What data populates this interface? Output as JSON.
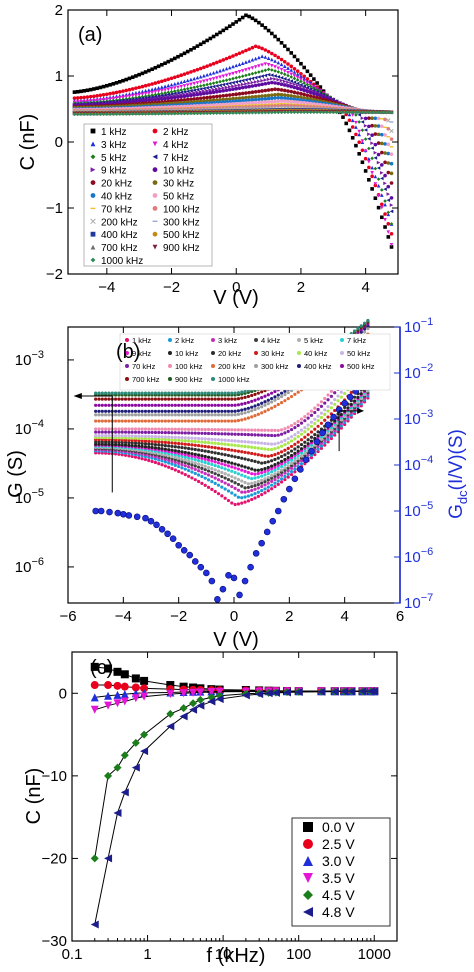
{
  "figure": {
    "panel_a": {
      "label": "(a)",
      "xlabel": "V (V)",
      "ylabel": "C (nF)"
    },
    "panel_b": {
      "label": "(b)",
      "xlabel": "V (V)",
      "ylabel": "G (S)",
      "y2label": "G",
      "y2label_sub": "dc",
      "y2label_tail": "(I/V)(S)"
    },
    "panel_c": {
      "label": "(c)",
      "xlabel": "f (kHz)",
      "ylabel": "C (nF)"
    }
  },
  "chart_data": [
    {
      "type": "scatter",
      "title": "",
      "panel": "(a)",
      "xlabel": "V (V)",
      "ylabel": "C (nF)",
      "xlim": [
        -5.2,
        5.0
      ],
      "ylim": [
        -2,
        2
      ],
      "xticks": [
        -4,
        -2,
        0,
        2,
        4
      ],
      "yticks": [
        -2,
        -1,
        0,
        1,
        2
      ],
      "grid": false,
      "legend": "lower-left",
      "series": [
        {
          "name": "1 kHz",
          "color": "#000000",
          "marker": "square",
          "peak_v": 0.3,
          "peak_c": 1.92,
          "start_c": 0.75,
          "cross_v": 3.2,
          "end_c": -1.9
        },
        {
          "name": "2 kHz",
          "color": "#e8001c",
          "marker": "circle",
          "peak_v": 0.6,
          "peak_c": 1.45,
          "start_c": 0.66,
          "cross_v": 3.35,
          "end_c": -1.7
        },
        {
          "name": "3 kHz",
          "color": "#1f2fd9",
          "marker": "triangle",
          "peak_v": 0.8,
          "peak_c": 1.3,
          "start_c": 0.62,
          "cross_v": 3.45,
          "end_c": -1.55
        },
        {
          "name": "4 kHz",
          "color": "#e316d6",
          "marker": "tri-down",
          "peak_v": 0.9,
          "peak_c": 1.18,
          "start_c": 0.6,
          "cross_v": 3.55,
          "end_c": -1.95
        },
        {
          "name": "5 kHz",
          "color": "#1b7d1b",
          "marker": "diamond",
          "peak_v": 1.0,
          "peak_c": 1.1,
          "start_c": 0.58,
          "cross_v": 3.65,
          "end_c": -1.6
        },
        {
          "name": "7 kHz",
          "color": "#1c1c8c",
          "marker": "tri-left",
          "peak_v": 1.0,
          "peak_c": 1.02,
          "start_c": 0.57,
          "cross_v": 3.75,
          "end_c": -1.4
        },
        {
          "name": "9 kHz",
          "color": "#7d1fa3",
          "marker": "tri-right",
          "peak_v": 1.1,
          "peak_c": 0.96,
          "start_c": 0.56,
          "cross_v": 3.8,
          "end_c": -1.3
        },
        {
          "name": "10 kHz",
          "color": "#5e0ca0",
          "marker": "hexagon",
          "peak_v": 1.1,
          "peak_c": 0.9,
          "start_c": 0.55,
          "cross_v": 3.9,
          "end_c": -1.2
        },
        {
          "name": "20 kHz",
          "color": "#8b0a1e",
          "marker": "circle",
          "peak_v": 1.2,
          "peak_c": 0.8,
          "start_c": 0.53,
          "cross_v": 4.0,
          "end_c": -0.95
        },
        {
          "name": "30 kHz",
          "color": "#7b6a12",
          "marker": "star",
          "peak_v": 1.3,
          "peak_c": 0.72,
          "start_c": 0.52,
          "cross_v": 4.1,
          "end_c": -0.8
        },
        {
          "name": "40 kHz",
          "color": "#1677c9",
          "marker": "circle",
          "peak_v": 1.3,
          "peak_c": 0.67,
          "start_c": 0.5,
          "cross_v": 4.2,
          "end_c": -0.65
        },
        {
          "name": "50 kHz",
          "color": "#f0a0c8",
          "marker": "circle",
          "peak_v": 1.4,
          "peak_c": 0.62,
          "start_c": 0.49,
          "cross_v": 4.3,
          "end_c": -0.5
        },
        {
          "name": "70 kHz",
          "color": "#ebc32c",
          "marker": "dash",
          "peak_v": 1.4,
          "peak_c": 0.58,
          "start_c": 0.48,
          "cross_v": 4.4,
          "end_c": -0.4
        },
        {
          "name": "100 kHz",
          "color": "#e07b7b",
          "marker": "circle",
          "peak_v": 1.5,
          "peak_c": 0.55,
          "start_c": 0.47,
          "cross_v": 4.5,
          "end_c": -0.3
        },
        {
          "name": "200 kHz",
          "color": "#aaaaaa",
          "marker": "cross",
          "peak_v": 1.5,
          "peak_c": 0.52,
          "start_c": 0.46,
          "cross_v": 4.6,
          "end_c": -0.2
        },
        {
          "name": "300 kHz",
          "color": "#9aa8d8",
          "marker": "dash",
          "peak_v": 1.5,
          "peak_c": 0.5,
          "start_c": 0.45,
          "cross_v": 4.7,
          "end_c": -0.1
        },
        {
          "name": "400 kHz",
          "color": "#1f3a9a",
          "marker": "square",
          "peak_v": 1.6,
          "peak_c": 0.49,
          "start_c": 0.44,
          "cross_v": 4.8,
          "end_c": 0.0
        },
        {
          "name": "500 kHz",
          "color": "#c28a1a",
          "marker": "circle",
          "peak_v": 1.6,
          "peak_c": 0.48,
          "start_c": 0.44,
          "cross_v": 4.9,
          "end_c": 0.1
        },
        {
          "name": "700 kHz",
          "color": "#6f6f6f",
          "marker": "triangle",
          "peak_v": 1.6,
          "peak_c": 0.47,
          "start_c": 0.43,
          "cross_v": 5.0,
          "end_c": 0.2
        },
        {
          "name": "900 kHz",
          "color": "#7d1f3a",
          "marker": "tri-down",
          "peak_v": 1.6,
          "peak_c": 0.46,
          "start_c": 0.43,
          "cross_v": 5.0,
          "end_c": 0.3
        },
        {
          "name": "1000 kHz",
          "color": "#2e8b57",
          "marker": "diamond",
          "peak_v": 1.6,
          "peak_c": 0.45,
          "start_c": 0.42,
          "cross_v": 5.0,
          "end_c": 0.4
        }
      ]
    },
    {
      "type": "scatter",
      "title": "",
      "panel": "(b)",
      "xlabel": "V (V)",
      "ylabel": "G (S)",
      "y2label": "Gdc(I/V)(S)",
      "xlim": [
        -6,
        6
      ],
      "ylim_log": [
        3e-07,
        0.003
      ],
      "y2lim_log": [
        1e-07,
        0.1
      ],
      "xticks": [
        -6,
        -4,
        -2,
        0,
        2,
        4,
        6
      ],
      "yticks": [
        "10^-6",
        "10^-5",
        "10^-4",
        "10^-3"
      ],
      "y2ticks": [
        "10^-7",
        "10^-6",
        "10^-5",
        "10^-4",
        "10^-3",
        "10^-2",
        "10^-1"
      ],
      "grid": false,
      "legend": "top-left",
      "legend_entries": [
        "1 kHz",
        "2 kHz",
        "3 kHz",
        "4 kHz",
        "5 kHz",
        "7 kHz",
        "9 kHz",
        "10 kHz",
        "20 kHz",
        "30 kHz",
        "40 kHz",
        "50 kHz",
        "70 kHz",
        "100 kHz",
        "200 kHz",
        "300 kHz",
        "400 kHz",
        "500 kHz",
        "700 kHz",
        "900 kHz",
        "1000 kHz"
      ],
      "legend_colors": [
        "#e3126e",
        "#1a9bd7",
        "#c42fb8",
        "#404040",
        "#b0b0b0",
        "#2ad0d0",
        "#e31ad2",
        "#222222",
        "#2f2f2f",
        "#d11a1a",
        "#a8e84a",
        "#c9b4e8",
        "#7d1fa3",
        "#f08bb0",
        "#e06b3a",
        "#9ea0a0",
        "#1f1f7a",
        "#8b0aa0",
        "#8b1010",
        "#1f5a1f",
        "#2b8a7a"
      ],
      "series": [
        {
          "name": "1 kHz",
          "color": "#e3126e",
          "g_left": 4.5e-05,
          "g_min": 8e-06,
          "v_min": 0.0,
          "g_right": 0.0003
        },
        {
          "name": "2 kHz",
          "color": "#1a9bd7",
          "g_left": 4.8e-05,
          "g_min": 1e-05,
          "v_min": 0.2,
          "g_right": 0.00032
        },
        {
          "name": "3 kHz",
          "color": "#c42fb8",
          "g_left": 5e-05,
          "g_min": 1.2e-05,
          "v_min": 0.3,
          "g_right": 0.00034
        },
        {
          "name": "4 kHz",
          "color": "#404040",
          "g_left": 5.2e-05,
          "g_min": 1.4e-05,
          "v_min": 0.4,
          "g_right": 0.00036
        },
        {
          "name": "5 kHz",
          "color": "#b0b0b0",
          "g_left": 5.4e-05,
          "g_min": 1.6e-05,
          "v_min": 0.5,
          "g_right": 0.00038
        },
        {
          "name": "7 kHz",
          "color": "#2ad0d0",
          "g_left": 5.6e-05,
          "g_min": 1.9e-05,
          "v_min": 0.6,
          "g_right": 0.0004
        },
        {
          "name": "9 kHz",
          "color": "#e31ad2",
          "g_left": 5.8e-05,
          "g_min": 2.2e-05,
          "v_min": 0.7,
          "g_right": 0.00042
        },
        {
          "name": "10 kHz",
          "color": "#222222",
          "g_left": 6e-05,
          "g_min": 2.5e-05,
          "v_min": 0.8,
          "g_right": 0.00044
        },
        {
          "name": "20 kHz",
          "color": "#2f2f2f",
          "g_left": 6.5e-05,
          "g_min": 3.2e-05,
          "v_min": 1.0,
          "g_right": 0.0005
        },
        {
          "name": "30 kHz",
          "color": "#d11a1a",
          "g_left": 7e-05,
          "g_min": 4e-05,
          "v_min": 1.2,
          "g_right": 0.0007
        },
        {
          "name": "40 kHz",
          "color": "#a8e84a",
          "g_left": 7.5e-05,
          "g_min": 5e-05,
          "v_min": 1.3,
          "g_right": 0.0009
        },
        {
          "name": "50 kHz",
          "color": "#c9b4e8",
          "g_left": 8e-05,
          "g_min": 6e-05,
          "v_min": 1.4,
          "g_right": 0.0011
        },
        {
          "name": "70 kHz",
          "color": "#7d1fa3",
          "g_left": 9e-05,
          "g_min": 8e-05,
          "v_min": 1.5,
          "g_right": 0.0014
        },
        {
          "name": "100 kHz",
          "color": "#f08bb0",
          "g_left": 0.0001,
          "g_min": 9.5e-05,
          "v_min": 1.6,
          "g_right": 0.0018
        },
        {
          "name": "200 kHz",
          "color": "#e06b3a",
          "g_left": 0.00013,
          "g_min": 0.00013,
          "v_min": 0.0,
          "g_right": 0.0025
        },
        {
          "name": "300 kHz",
          "color": "#9ea0a0",
          "g_left": 0.00016,
          "g_min": 0.00016,
          "v_min": 0.0,
          "g_right": 0.003
        },
        {
          "name": "400 kHz",
          "color": "#1f1f7a",
          "g_left": 0.00018,
          "g_min": 0.00018,
          "v_min": 0.0,
          "g_right": 0.0033
        },
        {
          "name": "500 kHz",
          "color": "#8b0aa0",
          "g_left": 0.00022,
          "g_min": 0.00022,
          "v_min": 0.0,
          "g_right": 0.0035
        },
        {
          "name": "700 kHz",
          "color": "#8b1010",
          "g_left": 0.00027,
          "g_min": 0.00027,
          "v_min": 0.0,
          "g_right": 0.0037
        },
        {
          "name": "900 kHz",
          "color": "#1f5a1f",
          "g_left": 0.00031,
          "g_min": 0.00031,
          "v_min": 0.0,
          "g_right": 0.0038
        },
        {
          "name": "1000 kHz",
          "color": "#2b8a7a",
          "g_left": 0.00033,
          "g_min": 0.00033,
          "v_min": 0.0,
          "g_right": 0.0039
        }
      ],
      "dc_series": {
        "color": "#1f2fd9",
        "axis": "right",
        "points": [
          [
            -5.0,
            1e-05
          ],
          [
            -4.8,
            1e-05
          ],
          [
            -4.5,
            9.5e-06
          ],
          [
            -4.2,
            9e-06
          ],
          [
            -4.0,
            8.5e-06
          ],
          [
            -3.8,
            8e-06
          ],
          [
            -3.5,
            7.5e-06
          ],
          [
            -3.2,
            7e-06
          ],
          [
            -3.0,
            6e-06
          ],
          [
            -2.8,
            5e-06
          ],
          [
            -2.6,
            4e-06
          ],
          [
            -2.4,
            3.2e-06
          ],
          [
            -2.2,
            2.5e-06
          ],
          [
            -2.0,
            1.8e-06
          ],
          [
            -1.8,
            1.4e-06
          ],
          [
            -1.6,
            1.1e-06
          ],
          [
            -1.4,
            8e-07
          ],
          [
            -1.2,
            6e-07
          ],
          [
            -1.0,
            4.5e-07
          ],
          [
            -0.8,
            3e-07
          ],
          [
            -0.6,
            1.2e-07
          ],
          [
            -0.4,
            2e-07
          ],
          [
            -0.2,
            4e-07
          ],
          [
            0.0,
            3.5e-07
          ],
          [
            0.2,
            1.5e-07
          ],
          [
            0.4,
            3e-07
          ],
          [
            0.6,
            6e-07
          ],
          [
            0.8,
            1.2e-06
          ],
          [
            1.0,
            2e-06
          ],
          [
            1.2,
            3.5e-06
          ],
          [
            1.4,
            6e-06
          ],
          [
            1.6,
            1e-05
          ],
          [
            1.8,
            1.8e-05
          ],
          [
            2.0,
            3e-05
          ],
          [
            2.2,
            5e-05
          ],
          [
            2.4,
            8e-05
          ],
          [
            2.6,
            0.00013
          ],
          [
            2.8,
            0.0002
          ],
          [
            3.0,
            0.00032
          ],
          [
            3.2,
            0.0005
          ],
          [
            3.4,
            0.00075
          ],
          [
            3.6,
            0.0011
          ],
          [
            3.8,
            0.0016
          ],
          [
            4.0,
            0.0022
          ],
          [
            4.2,
            0.003
          ],
          [
            4.4,
            0.004
          ],
          [
            4.6,
            0.005
          ],
          [
            4.8,
            0.006
          ],
          [
            4.9,
            0.0065
          ]
        ]
      }
    },
    {
      "type": "line",
      "title": "",
      "panel": "(c)",
      "xlabel": "f (kHz)",
      "ylabel": "C (nF)",
      "xscale": "log",
      "xlim": [
        0.1,
        2000
      ],
      "ylim": [
        -30,
        5
      ],
      "xticks": [
        0.1,
        1,
        10,
        100,
        1000
      ],
      "xtick_labels": [
        "0.1",
        "1",
        "10",
        "100",
        "1000"
      ],
      "yticks": [
        -30,
        -20,
        -10,
        0
      ],
      "grid": false,
      "legend": "lower-right",
      "x": [
        0.2,
        0.3,
        0.4,
        0.5,
        0.7,
        0.9,
        2,
        3,
        4,
        5,
        7,
        9,
        20,
        30,
        40,
        50,
        70,
        100,
        200,
        300,
        400,
        500,
        700,
        900,
        1000
      ],
      "series": [
        {
          "name": "0.0 V",
          "color": "#000000",
          "marker": "square",
          "values": [
            3.2,
            3.0,
            2.6,
            2.3,
            1.8,
            1.5,
            1.0,
            0.8,
            0.7,
            0.6,
            0.5,
            0.45,
            0.4,
            0.35,
            0.32,
            0.3,
            0.28,
            0.27,
            0.26,
            0.26,
            0.25,
            0.25,
            0.25,
            0.25,
            0.25
          ]
        },
        {
          "name": "2.5 V",
          "color": "#e8001c",
          "marker": "circle",
          "values": [
            1.0,
            1.0,
            0.9,
            0.8,
            0.7,
            0.6,
            0.5,
            0.45,
            0.42,
            0.4,
            0.38,
            0.36,
            0.33,
            0.3,
            0.3,
            0.29,
            0.28,
            0.27,
            0.26,
            0.26,
            0.25,
            0.25,
            0.25,
            0.25,
            0.25
          ]
        },
        {
          "name": "3.0 V",
          "color": "#1f2fd9",
          "marker": "triangle",
          "values": [
            -0.5,
            -0.3,
            -0.2,
            -0.1,
            0.0,
            0.05,
            0.1,
            0.15,
            0.18,
            0.2,
            0.22,
            0.23,
            0.24,
            0.25,
            0.25,
            0.25,
            0.25,
            0.25,
            0.25,
            0.25,
            0.25,
            0.25,
            0.25,
            0.25,
            0.25
          ]
        },
        {
          "name": "3.5 V",
          "color": "#e316d6",
          "marker": "tri-down",
          "values": [
            -2.0,
            -1.5,
            -1.2,
            -1.0,
            -0.6,
            -0.4,
            -0.1,
            0.0,
            0.05,
            0.1,
            0.15,
            0.18,
            0.2,
            0.22,
            0.23,
            0.24,
            0.24,
            0.24,
            0.25,
            0.25,
            0.25,
            0.25,
            0.25,
            0.25,
            0.25
          ]
        },
        {
          "name": "4.5 V",
          "color": "#1b7d1b",
          "marker": "diamond",
          "values": [
            -20.0,
            -10.0,
            -9.0,
            -7.5,
            -6.0,
            -5.0,
            -2.5,
            -1.8,
            -1.2,
            -0.8,
            -0.5,
            -0.3,
            -0.05,
            0.0,
            0.05,
            0.1,
            0.15,
            0.18,
            0.2,
            0.22,
            0.23,
            0.24,
            0.24,
            0.25,
            0.25
          ]
        },
        {
          "name": "4.8 V",
          "color": "#1c1c8c",
          "marker": "tri-left",
          "values": [
            -28.0,
            -20.0,
            -14.5,
            -12.0,
            -9.0,
            -7.0,
            -4.0,
            -2.8,
            -2.0,
            -1.5,
            -1.0,
            -0.7,
            -0.25,
            -0.1,
            0.0,
            0.05,
            0.1,
            0.15,
            0.18,
            0.2,
            0.22,
            0.23,
            0.24,
            0.24,
            0.25
          ]
        }
      ]
    }
  ]
}
